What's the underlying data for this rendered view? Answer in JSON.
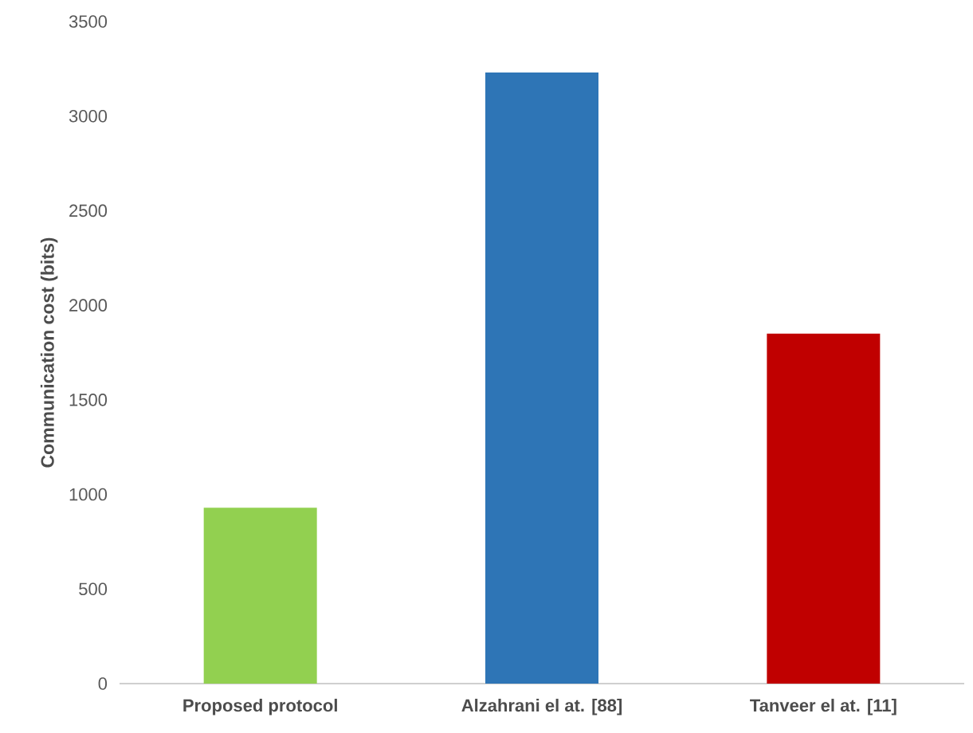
{
  "chart_data": {
    "type": "bar",
    "ylabel": "Communication cost  (bits)",
    "categories": [
      "Proposed protocol",
      "Alzahrani el at. [88]",
      "Tanveer el at. [11]"
    ],
    "values": [
      930,
      3230,
      1850
    ],
    "colors": [
      "#92d050",
      "#2e75b6",
      "#c00000"
    ],
    "ylim": [
      0,
      3500
    ],
    "yticks": [
      0,
      500,
      1000,
      1500,
      2000,
      2500,
      3000,
      3500
    ]
  }
}
